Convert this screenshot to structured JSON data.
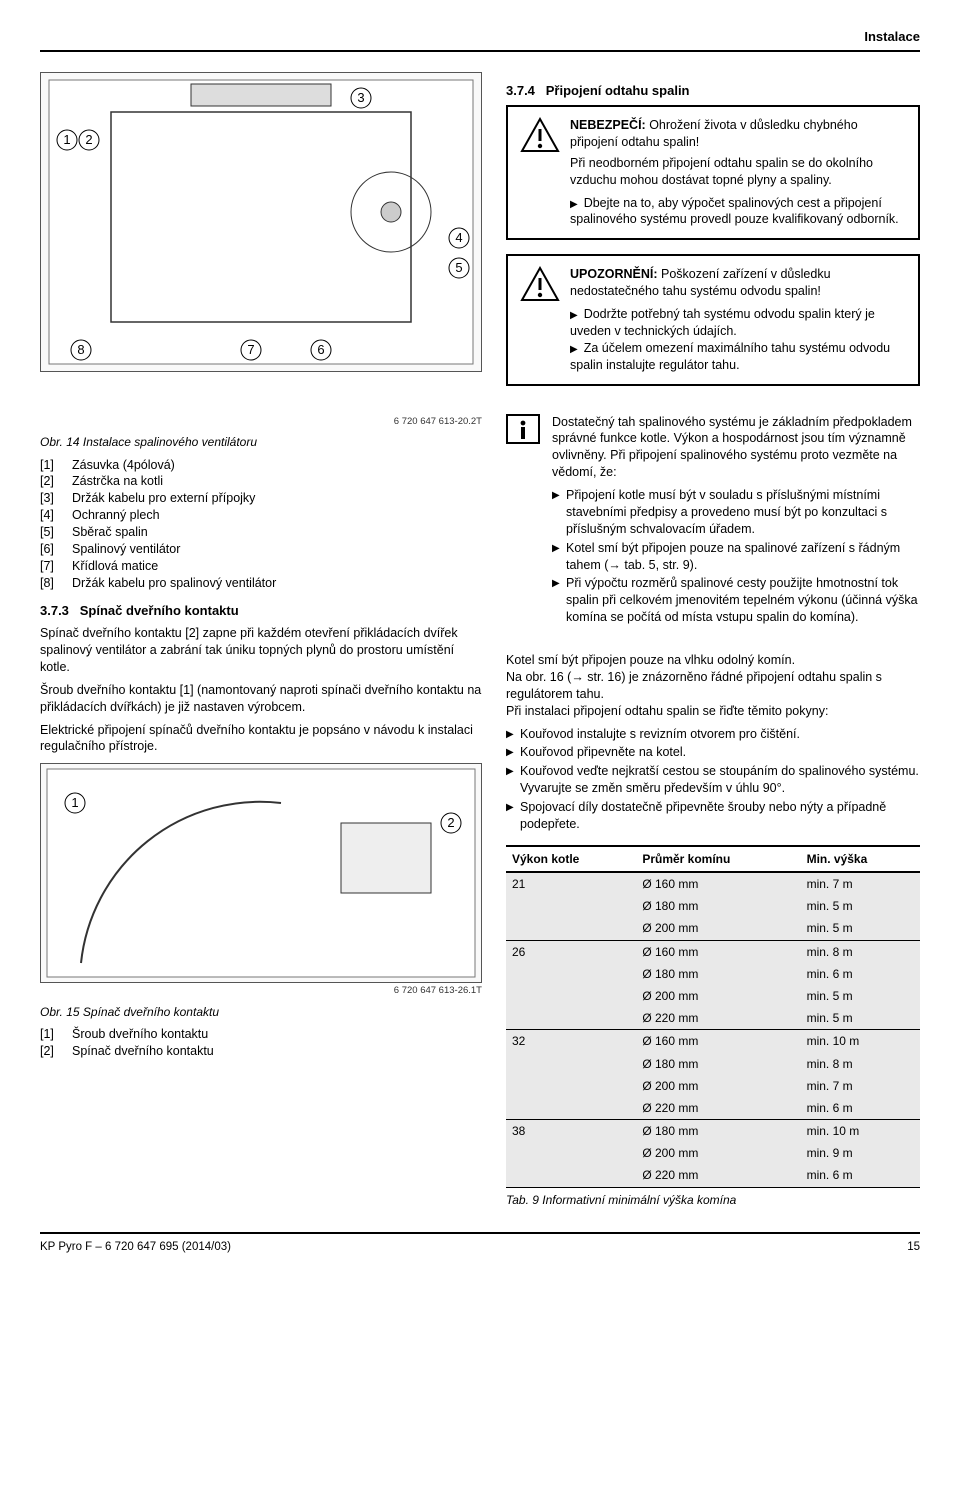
{
  "header": {
    "section": "Instalace"
  },
  "sec374": {
    "num": "3.7.4",
    "title": "Připojení odtahu spalin"
  },
  "danger": {
    "label": "NEBEZPEČÍ:",
    "text": "Ohrožení života v důsledku chybného připojení odtahu spalin!",
    "para": "Při neodborném připojení odtahu spalin se do okolního vzduchu mohou dostávat topné plyny a spaliny.",
    "b1": "Dbejte na to, aby výpočet spalinových cest a připojení spalinového systému provedl pouze kvalifikovaný odborník."
  },
  "notice": {
    "label": "UPOZORNĚNÍ:",
    "text": "Poškození zařízení v důsledku nedostatečného tahu systému odvodu spalin!",
    "b1": "Dodržte potřebný tah systému odvodu spalin který je uveden v technických údajích.",
    "b2": "Za účelem omezení maximálního tahu systému odvodu spalin instalujte regulátor tahu."
  },
  "infobox": {
    "para": "Dostatečný tah spalinového systému je základním předpokladem správné funkce kotle. Výkon a hospodárnost jsou tím významně ovlivněny. Při připojení spalinového systému proto vezměte na vědomí, že:",
    "b1": "Připojení kotle musí být v souladu s příslušnými místními stavebními předpisy a provedeno musí být po konzultaci s příslušným schvalovacím úřadem.",
    "b2": "Kotel smí být připojen pouze na spalinové zařízení s řádným tahem (→ tab. 5, str. 9).",
    "b3": "Při výpočtu rozměrů spalinové cesty použijte hmotnostní tok spalin při celkovém jmenovitém tepelném výkonu (účinná výška komína se počítá od místa vstupu spalin do komína)."
  },
  "chimney": {
    "p1": "Kotel smí být připojen pouze na vlhku odolný komín.",
    "p2": "Na obr. 16 (→ str. 16) je znázorněno řádné připojení odtahu spalin s regulátorem tahu.",
    "p3": "Při instalaci připojení odtahu spalin se řiďte těmito pokyny:",
    "b1": "Kouřovod instalujte s revizním otvorem pro čištění.",
    "b2": "Kouřovod připevněte na kotel.",
    "b3": "Kouřovod veďte nejkratší cestou se stoupáním do spalinového systému. Vyvarujte se změn směru především v úhlu 90°.",
    "b4": "Spojovací díly dostatečně připevněte šrouby nebo nýty a případně podepřete."
  },
  "fig14": {
    "ref": "6 720 647 613-20.2T",
    "cap": "Obr. 14  Instalace spalinového ventilátoru",
    "legend": [
      {
        "k": "[1]",
        "v": "Zásuvka (4pólová)"
      },
      {
        "k": "[2]",
        "v": "Zástrčka na kotli"
      },
      {
        "k": "[3]",
        "v": "Držák kabelu pro externí přípojky"
      },
      {
        "k": "[4]",
        "v": "Ochranný plech"
      },
      {
        "k": "[5]",
        "v": "Sběrač spalin"
      },
      {
        "k": "[6]",
        "v": "Spalinový ventilátor"
      },
      {
        "k": "[7]",
        "v": "Křídlová matice"
      },
      {
        "k": "[8]",
        "v": "Držák kabelu pro spalinový ventilátor"
      }
    ]
  },
  "sec373": {
    "num": "3.7.3",
    "title": "Spínač dveřního kontaktu",
    "p1": "Spínač dveřního kontaktu [2] zapne při každém otevření přikládacích dvířek spalinový ventilátor a zabrání tak úniku topných plynů do prostoru umístění kotle.",
    "p2": "Šroub dveřního kontaktu [1] (namontovaný naproti spínači dveřního kontaktu na přikládacích dvířkách) je již nastaven výrobcem.",
    "p3": "Elektrické připojení spínačů dveřního kontaktu je popsáno v návodu k instalaci regulačního přístroje."
  },
  "fig15": {
    "ref": "6 720 647 613-26.1T",
    "cap": "Obr. 15  Spínač dveřního kontaktu",
    "legend": [
      {
        "k": "[1]",
        "v": "Šroub dveřního kontaktu"
      },
      {
        "k": "[2]",
        "v": "Spínač dveřního kontaktu"
      }
    ]
  },
  "table9": {
    "caption": "Tab. 9    Informativní minimální výška komína",
    "columns": [
      "Výkon kotle",
      "Průměr komínu",
      "Min. výška"
    ],
    "groups": [
      {
        "power": "21",
        "rows": [
          [
            "Ø 160 mm",
            "min. 7 m"
          ],
          [
            "Ø 180 mm",
            "min. 5 m"
          ],
          [
            "Ø 200 mm",
            "min. 5 m"
          ]
        ]
      },
      {
        "power": "26",
        "rows": [
          [
            "Ø 160 mm",
            "min. 8 m"
          ],
          [
            "Ø 180 mm",
            "min. 6 m"
          ],
          [
            "Ø 200 mm",
            "min. 5 m"
          ],
          [
            "Ø 220 mm",
            "min. 5 m"
          ]
        ]
      },
      {
        "power": "32",
        "rows": [
          [
            "Ø 160 mm",
            "min. 10 m"
          ],
          [
            "Ø 180 mm",
            "min. 8 m"
          ],
          [
            "Ø 200 mm",
            "min. 7 m"
          ],
          [
            "Ø 220 mm",
            "min. 6 m"
          ]
        ]
      },
      {
        "power": "38",
        "rows": [
          [
            "Ø 180 mm",
            "min. 10 m"
          ],
          [
            "Ø 200 mm",
            "min. 9 m"
          ],
          [
            "Ø 220 mm",
            "min. 6 m"
          ]
        ]
      }
    ]
  },
  "footer": {
    "doc": "KP Pyro F – 6 720 647 695 (2014/03)",
    "page": "15"
  }
}
